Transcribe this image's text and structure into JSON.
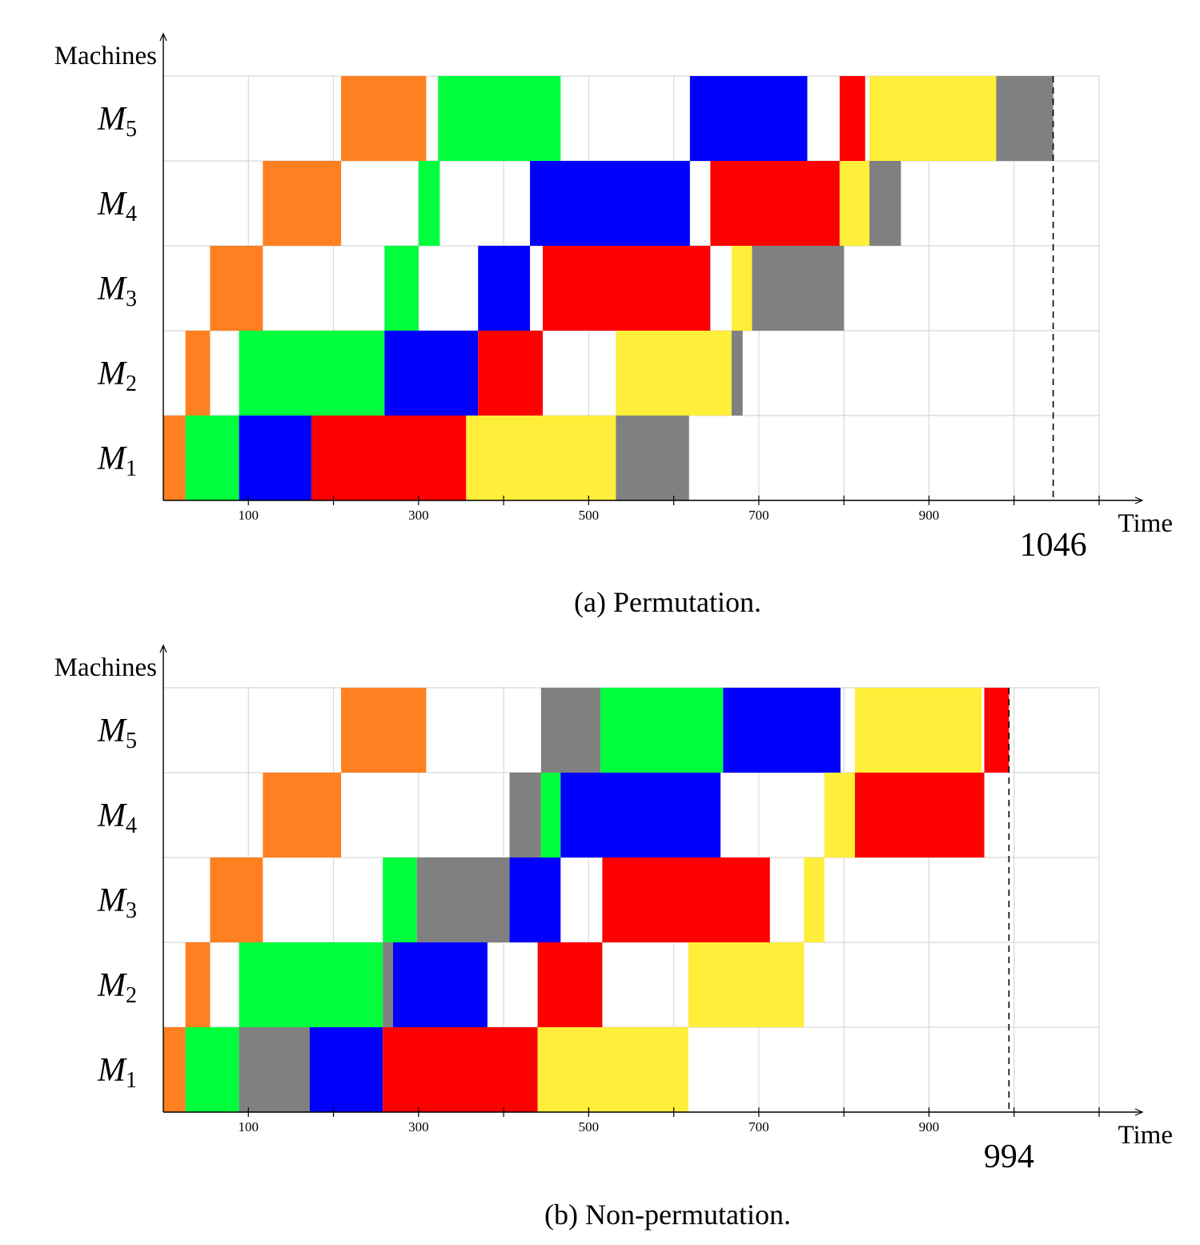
{
  "colors": {
    "orange": "#ff8020",
    "green": "#00ff3c",
    "blue": "#0000ff",
    "red": "#ff0000",
    "yellow": "#ffee3a",
    "gray": "#808080"
  },
  "chart_data": [
    {
      "type": "gantt",
      "caption": "(a) Permutation.",
      "xlabel": "Time",
      "ylabel": "Machines",
      "xlim": [
        0,
        1100
      ],
      "grid": true,
      "x_ticks": [
        100,
        200,
        300,
        400,
        500,
        600,
        700,
        800,
        900,
        1000,
        1100
      ],
      "x_tick_labels": [
        "100",
        "",
        "300",
        "",
        "500",
        "",
        "700",
        "",
        "900",
        "",
        ""
      ],
      "makespan": 1046,
      "makespan_label": "1046",
      "machines": [
        {
          "name": "M",
          "sub": "1",
          "tasks": [
            {
              "start": 0,
              "end": 26,
              "color": "orange"
            },
            {
              "start": 26,
              "end": 89,
              "color": "green"
            },
            {
              "start": 89,
              "end": 174,
              "color": "blue"
            },
            {
              "start": 174,
              "end": 356,
              "color": "red"
            },
            {
              "start": 356,
              "end": 532,
              "color": "yellow"
            },
            {
              "start": 532,
              "end": 618,
              "color": "gray"
            }
          ]
        },
        {
          "name": "M",
          "sub": "2",
          "tasks": [
            {
              "start": 26,
              "end": 55,
              "color": "orange"
            },
            {
              "start": 89,
              "end": 260,
              "color": "green"
            },
            {
              "start": 260,
              "end": 370,
              "color": "blue"
            },
            {
              "start": 370,
              "end": 446,
              "color": "red"
            },
            {
              "start": 532,
              "end": 668,
              "color": "yellow"
            },
            {
              "start": 668,
              "end": 681,
              "color": "gray"
            }
          ]
        },
        {
          "name": "M",
          "sub": "3",
          "tasks": [
            {
              "start": 55,
              "end": 117,
              "color": "orange"
            },
            {
              "start": 260,
              "end": 300,
              "color": "green"
            },
            {
              "start": 370,
              "end": 431,
              "color": "blue"
            },
            {
              "start": 446,
              "end": 643,
              "color": "red"
            },
            {
              "start": 668,
              "end": 692,
              "color": "yellow"
            },
            {
              "start": 692,
              "end": 800,
              "color": "gray"
            }
          ]
        },
        {
          "name": "M",
          "sub": "4",
          "tasks": [
            {
              "start": 117,
              "end": 209,
              "color": "orange"
            },
            {
              "start": 300,
              "end": 325,
              "color": "green"
            },
            {
              "start": 431,
              "end": 619,
              "color": "blue"
            },
            {
              "start": 643,
              "end": 795,
              "color": "red"
            },
            {
              "start": 795,
              "end": 830,
              "color": "yellow"
            },
            {
              "start": 830,
              "end": 867,
              "color": "gray"
            }
          ]
        },
        {
          "name": "M",
          "sub": "5",
          "tasks": [
            {
              "start": 209,
              "end": 309,
              "color": "orange"
            },
            {
              "start": 323,
              "end": 467,
              "color": "green"
            },
            {
              "start": 619,
              "end": 757,
              "color": "blue"
            },
            {
              "start": 795,
              "end": 825,
              "color": "red"
            },
            {
              "start": 830,
              "end": 979,
              "color": "yellow"
            },
            {
              "start": 979,
              "end": 1046,
              "color": "gray"
            }
          ]
        }
      ]
    },
    {
      "type": "gantt",
      "caption": "(b) Non-permutation.",
      "xlabel": "Time",
      "ylabel": "Machines",
      "xlim": [
        0,
        1100
      ],
      "grid": true,
      "x_ticks": [
        100,
        200,
        300,
        400,
        500,
        600,
        700,
        800,
        900,
        1000,
        1100
      ],
      "x_tick_labels": [
        "100",
        "",
        "300",
        "",
        "500",
        "",
        "700",
        "",
        "900",
        "",
        ""
      ],
      "makespan": 994,
      "makespan_label": "994",
      "machines": [
        {
          "name": "M",
          "sub": "1",
          "tasks": [
            {
              "start": 0,
              "end": 26,
              "color": "orange"
            },
            {
              "start": 26,
              "end": 89,
              "color": "green"
            },
            {
              "start": 89,
              "end": 172,
              "color": "gray"
            },
            {
              "start": 172,
              "end": 258,
              "color": "blue"
            },
            {
              "start": 258,
              "end": 440,
              "color": "red"
            },
            {
              "start": 440,
              "end": 617,
              "color": "yellow"
            }
          ]
        },
        {
          "name": "M",
          "sub": "2",
          "tasks": [
            {
              "start": 26,
              "end": 55,
              "color": "orange"
            },
            {
              "start": 89,
              "end": 258,
              "color": "green"
            },
            {
              "start": 258,
              "end": 270,
              "color": "gray"
            },
            {
              "start": 270,
              "end": 381,
              "color": "blue"
            },
            {
              "start": 440,
              "end": 516,
              "color": "red"
            },
            {
              "start": 617,
              "end": 753,
              "color": "yellow"
            }
          ]
        },
        {
          "name": "M",
          "sub": "3",
          "tasks": [
            {
              "start": 55,
              "end": 117,
              "color": "orange"
            },
            {
              "start": 258,
              "end": 298,
              "color": "green"
            },
            {
              "start": 298,
              "end": 407,
              "color": "gray"
            },
            {
              "start": 407,
              "end": 467,
              "color": "blue"
            },
            {
              "start": 516,
              "end": 713,
              "color": "red"
            },
            {
              "start": 753,
              "end": 777,
              "color": "yellow"
            }
          ]
        },
        {
          "name": "M",
          "sub": "4",
          "tasks": [
            {
              "start": 117,
              "end": 209,
              "color": "orange"
            },
            {
              "start": 407,
              "end": 444,
              "color": "gray"
            },
            {
              "start": 444,
              "end": 467,
              "color": "green"
            },
            {
              "start": 467,
              "end": 655,
              "color": "blue"
            },
            {
              "start": 777,
              "end": 813,
              "color": "yellow"
            },
            {
              "start": 813,
              "end": 965,
              "color": "red"
            }
          ]
        },
        {
          "name": "M",
          "sub": "5",
          "tasks": [
            {
              "start": 209,
              "end": 309,
              "color": "orange"
            },
            {
              "start": 444,
              "end": 514,
              "color": "gray"
            },
            {
              "start": 514,
              "end": 658,
              "color": "green"
            },
            {
              "start": 658,
              "end": 796,
              "color": "blue"
            },
            {
              "start": 813,
              "end": 962,
              "color": "yellow"
            },
            {
              "start": 965,
              "end": 994,
              "color": "red"
            }
          ]
        }
      ]
    }
  ]
}
